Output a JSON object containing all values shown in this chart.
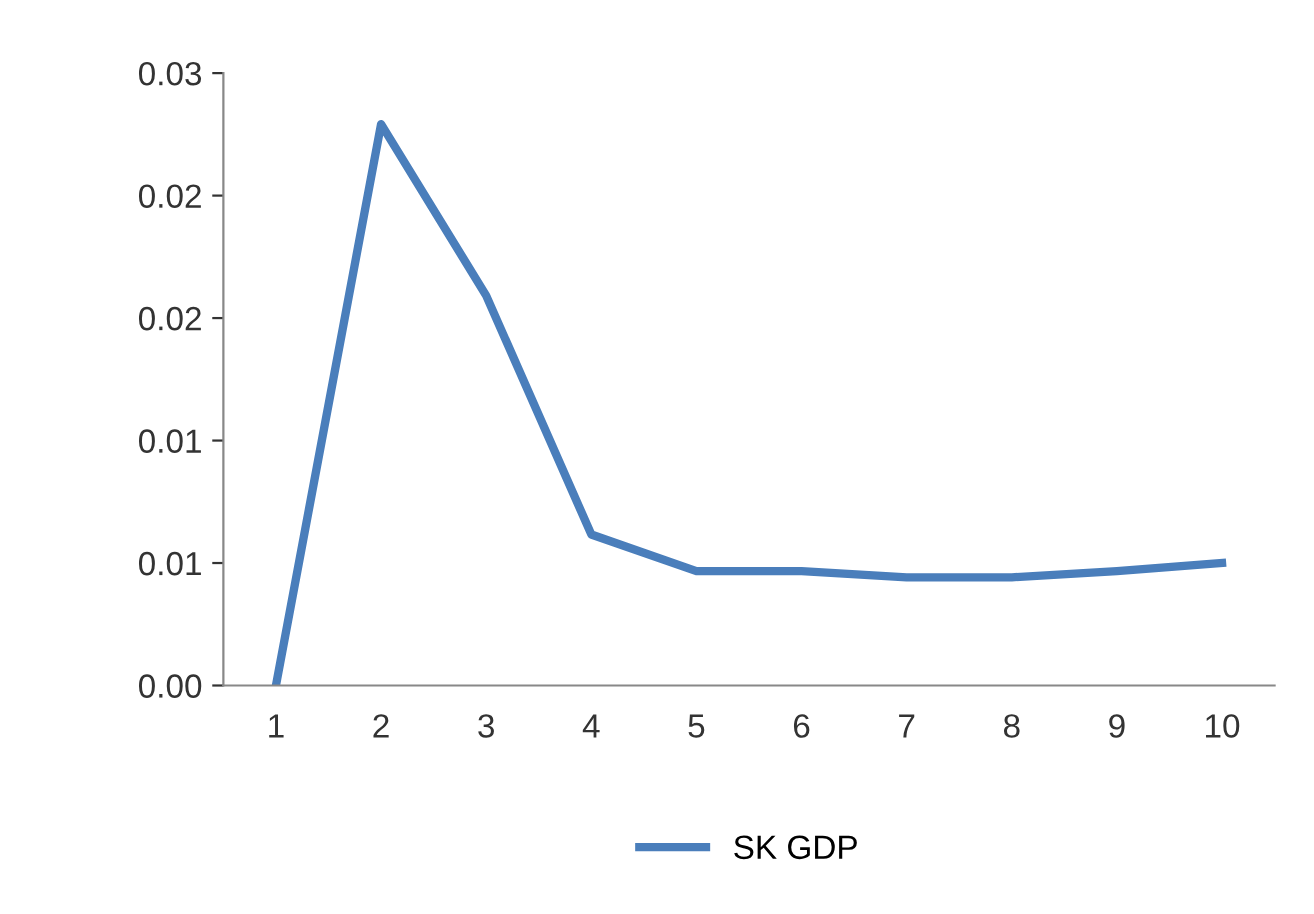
{
  "chart_data": {
    "type": "line",
    "categories": [
      "1",
      "2",
      "3",
      "4",
      "5",
      "6",
      "7",
      "8",
      "9",
      "10"
    ],
    "series": [
      {
        "name": "SK GDP",
        "color": "#4a7ebb",
        "values": [
          0,
          0.0275,
          0.0191,
          0.0074,
          0.0056,
          0.0056,
          0.0053,
          0.0053,
          0.0056,
          0.006
        ]
      }
    ],
    "ylim": [
      0,
      0.03
    ],
    "yticks": [
      {
        "value": 0,
        "label": "0.00"
      },
      {
        "value": 0.006,
        "label": "0.01"
      },
      {
        "value": 0.012,
        "label": "0.01"
      },
      {
        "value": 0.018,
        "label": "0.02"
      },
      {
        "value": 0.024,
        "label": "0.02"
      },
      {
        "value": 0.03,
        "label": "0.03"
      }
    ],
    "grid": false,
    "legend": "bottom",
    "marker": "none",
    "line_style": "solid"
  }
}
